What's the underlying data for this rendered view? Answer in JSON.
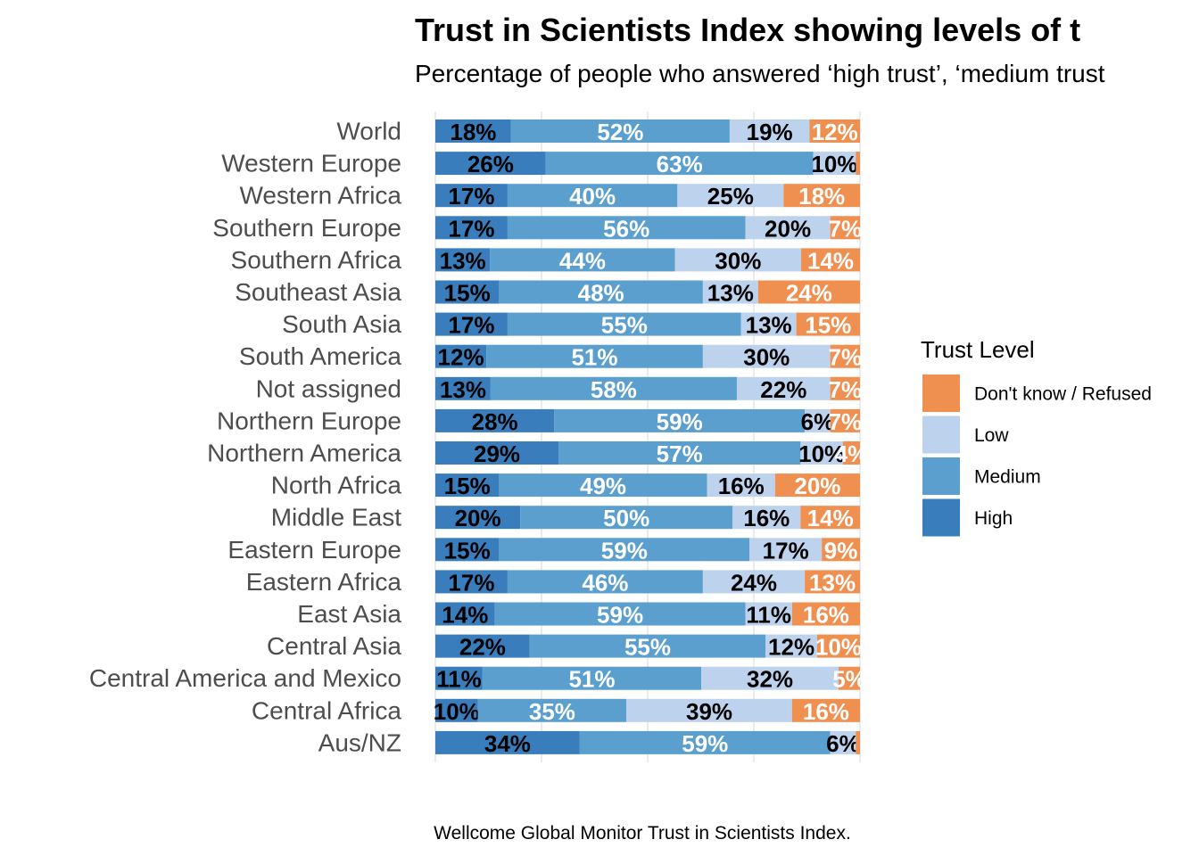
{
  "chart_data": {
    "type": "bar",
    "orientation": "horizontal",
    "stacked": true,
    "percent_stacked": true,
    "title": "Trust in Scientists Index showing levels of t",
    "subtitle": "Percentage of people who answered ‘high trust’, ‘medium trust",
    "caption": "Wellcome Global Monitor Trust in Scientists Index.",
    "xlim": [
      0,
      100
    ],
    "grid": true,
    "legend": {
      "title": "Trust Level",
      "position": "right",
      "entries": [
        "Don't know / Refused",
        "Low",
        "Medium",
        "High"
      ]
    },
    "categories": [
      "World",
      "Western Europe",
      "Western Africa",
      "Southern Europe",
      "Southern Africa",
      "Southeast Asia",
      "South Asia",
      "South America",
      "Not assigned",
      "Northern Europe",
      "Northern America",
      "North Africa",
      "Middle East",
      "Eastern Europe",
      "Eastern Africa",
      "East Asia",
      "Central Asia",
      "Central America and Mexico",
      "Central Africa",
      "Aus/NZ"
    ],
    "series": [
      {
        "name": "High",
        "color": "#3a7dbd",
        "label_color": "#000000",
        "values": [
          18,
          26,
          17,
          17,
          13,
          15,
          17,
          12,
          13,
          28,
          29,
          15,
          20,
          15,
          17,
          14,
          22,
          11,
          10,
          34
        ]
      },
      {
        "name": "Medium",
        "color": "#5b9fce",
        "label_color": "#ffffff",
        "values": [
          52,
          63,
          40,
          56,
          44,
          48,
          55,
          51,
          58,
          59,
          57,
          49,
          50,
          59,
          46,
          59,
          55,
          51,
          35,
          59
        ]
      },
      {
        "name": "Low",
        "color": "#bdd2ec",
        "label_color": "#000000",
        "values": [
          19,
          10,
          25,
          20,
          30,
          13,
          13,
          30,
          22,
          6,
          10,
          16,
          16,
          17,
          24,
          11,
          12,
          32,
          39,
          6
        ]
      },
      {
        "name": "Don't know / Refused",
        "color": "#ef8f50",
        "label_color": "#ffffff",
        "values": [
          12,
          1,
          18,
          7,
          14,
          24,
          15,
          7,
          7,
          7,
          4,
          20,
          14,
          9,
          13,
          16,
          10,
          5,
          16,
          1
        ]
      }
    ],
    "labels": {
      "High": [
        "18%",
        "26%",
        "17%",
        "17%",
        "13%",
        "15%",
        "17%",
        "12%",
        "13%",
        "28%",
        "29%",
        "15%",
        "20%",
        "15%",
        "17%",
        "14%",
        "22%",
        "11%",
        "10%",
        "34%"
      ],
      "Medium": [
        "52%",
        "63%",
        "40%",
        "56%",
        "44%",
        "48%",
        "55%",
        "51%",
        "58%",
        "59%",
        "57%",
        "49%",
        "50%",
        "59%",
        "46%",
        "59%",
        "55%",
        "51%",
        "35%",
        "59%"
      ],
      "Low": [
        "19%",
        "10%",
        "25%",
        "20%",
        "30%",
        "13%",
        "13%",
        "30%",
        "22%",
        "6%",
        "10%",
        "16%",
        "16%",
        "17%",
        "24%",
        "11%",
        "12%",
        "32%",
        "39%",
        "6%"
      ],
      "Don't know / Refused": [
        "12%",
        "",
        "18%",
        "7%",
        "14%",
        "24%",
        "15%",
        "7%",
        "7%",
        "7%",
        "4%",
        "20%",
        "14%",
        "9%",
        "13%",
        "16%",
        "10%",
        "5%",
        "16%",
        ""
      ]
    }
  }
}
